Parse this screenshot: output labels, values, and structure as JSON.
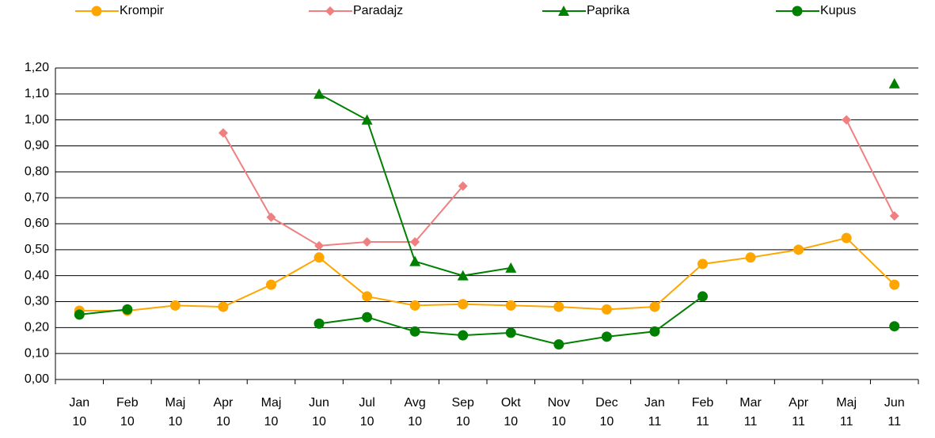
{
  "chart_data": {
    "type": "line",
    "categories": [
      [
        "Jan",
        "10"
      ],
      [
        "Feb",
        "10"
      ],
      [
        "Maj",
        "10"
      ],
      [
        "Apr",
        "10"
      ],
      [
        "Maj",
        "10"
      ],
      [
        "Jun",
        "10"
      ],
      [
        "Jul",
        "10"
      ],
      [
        "Avg",
        "10"
      ],
      [
        "Sep",
        "10"
      ],
      [
        "Okt",
        "10"
      ],
      [
        "Nov",
        "10"
      ],
      [
        "Dec",
        "10"
      ],
      [
        "Jan",
        "11"
      ],
      [
        "Feb",
        "11"
      ],
      [
        "Mar",
        "11"
      ],
      [
        "Apr",
        "11"
      ],
      [
        "Maj",
        "11"
      ],
      [
        "Jun",
        "11"
      ]
    ],
    "series": [
      {
        "name": "Krompir",
        "color": "#ffa500",
        "marker": "circle",
        "values": [
          0.265,
          0.265,
          0.285,
          0.28,
          0.365,
          0.47,
          0.32,
          0.285,
          0.29,
          0.285,
          0.28,
          0.27,
          0.28,
          0.445,
          0.47,
          0.5,
          0.545,
          0.365
        ]
      },
      {
        "name": "Paradajz",
        "color": "#f08080",
        "marker": "diamond",
        "values": [
          null,
          null,
          null,
          0.95,
          0.625,
          0.515,
          0.53,
          0.53,
          0.745,
          null,
          null,
          null,
          null,
          null,
          null,
          null,
          1.0,
          0.63
        ]
      },
      {
        "name": "Paprika",
        "color": "#008000",
        "marker": "triangle",
        "values": [
          null,
          null,
          null,
          null,
          null,
          1.1,
          1.0,
          0.455,
          0.4,
          0.43,
          null,
          null,
          null,
          null,
          null,
          null,
          null,
          1.14
        ]
      },
      {
        "name": "Kupus",
        "color": "#008000",
        "marker": "circle",
        "values": [
          0.25,
          0.27,
          null,
          null,
          null,
          0.215,
          0.24,
          0.185,
          0.17,
          0.18,
          0.135,
          0.165,
          0.185,
          0.32,
          null,
          null,
          null,
          0.205
        ]
      }
    ],
    "ylim": [
      0,
      1.2
    ],
    "yticks": [
      {
        "value": 0,
        "label": "0,00"
      },
      {
        "value": 0.1,
        "label": "0,10"
      },
      {
        "value": 0.2,
        "label": "0,20"
      },
      {
        "value": 0.3,
        "label": "0,30"
      },
      {
        "value": 0.4,
        "label": "0,40"
      },
      {
        "value": 0.5,
        "label": "0,50"
      },
      {
        "value": 0.6,
        "label": "0,60"
      },
      {
        "value": 0.7,
        "label": "0,70"
      },
      {
        "value": 0.8,
        "label": "0,80"
      },
      {
        "value": 0.9,
        "label": "0,90"
      },
      {
        "value": 1.0,
        "label": "1,00"
      },
      {
        "value": 1.1,
        "label": "1,10"
      },
      {
        "value": 1.2,
        "label": "1,20"
      }
    ],
    "grid": true,
    "legend": "top"
  }
}
